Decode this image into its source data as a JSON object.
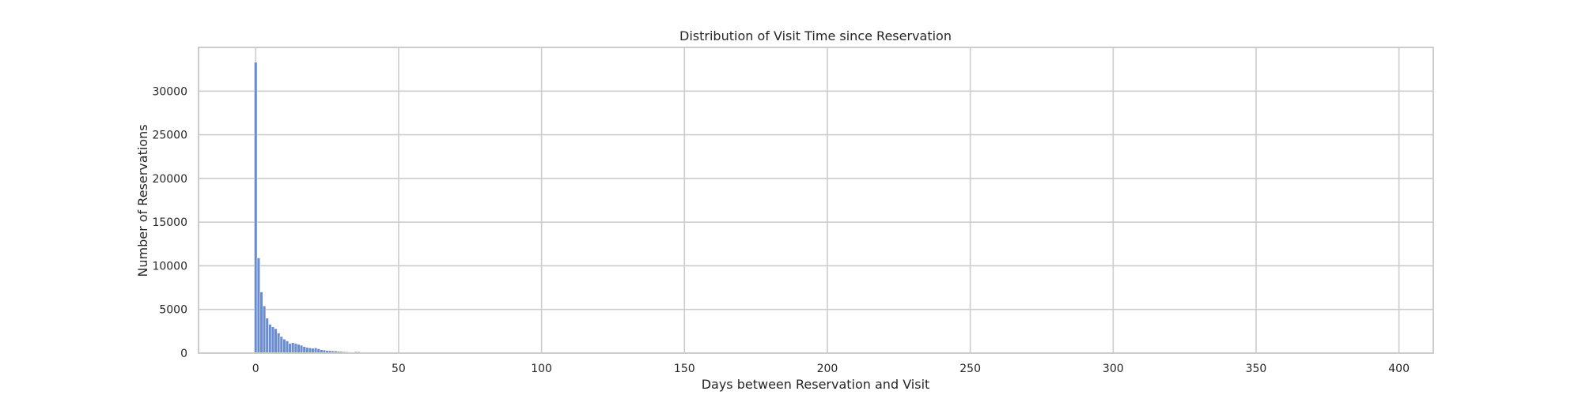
{
  "chart_data": {
    "type": "bar",
    "title": "Distribution of Visit Time since Reservation",
    "xlabel": "Days between Reservation and Visit",
    "ylabel": "Number of Reservations",
    "xlim": [
      -20,
      412
    ],
    "ylim": [
      0,
      35000
    ],
    "xticks": [
      0,
      50,
      100,
      150,
      200,
      250,
      300,
      350,
      400
    ],
    "yticks": [
      0,
      5000,
      10000,
      15000,
      20000,
      25000,
      30000
    ],
    "grid": true,
    "bar_color": "#6b8ccf",
    "bin_width": 1,
    "x": [
      0,
      1,
      2,
      3,
      4,
      5,
      6,
      7,
      8,
      9,
      10,
      11,
      12,
      13,
      14,
      15,
      16,
      17,
      18,
      19,
      20,
      21,
      22,
      23,
      24,
      25,
      26,
      27,
      28,
      29,
      30,
      31,
      32,
      33,
      34,
      35,
      36,
      37,
      38,
      39,
      40,
      41,
      42,
      43,
      44,
      45,
      46,
      47,
      48,
      49,
      50,
      51,
      52,
      53,
      54,
      55,
      56,
      57,
      58,
      59,
      60,
      61,
      62,
      63,
      64,
      65,
      66,
      67,
      68,
      69,
      70,
      71,
      72,
      73,
      74,
      75,
      76,
      77,
      78,
      79,
      80
    ],
    "values": [
      33300,
      10900,
      7000,
      5400,
      4000,
      3300,
      3000,
      2800,
      2300,
      1900,
      1600,
      1400,
      1100,
      1200,
      1100,
      1000,
      900,
      750,
      650,
      600,
      550,
      600,
      500,
      400,
      350,
      300,
      280,
      260,
      240,
      200,
      180,
      150,
      140,
      120,
      110,
      160,
      150,
      90,
      70,
      60,
      50,
      45,
      40,
      35,
      30,
      28,
      26,
      24,
      22,
      20,
      18,
      16,
      15,
      14,
      13,
      12,
      11,
      10,
      10,
      9,
      9,
      8,
      8,
      7,
      7,
      6,
      6,
      6,
      5,
      5,
      5,
      4,
      4,
      4,
      3,
      3,
      3,
      2,
      2,
      2,
      2
    ]
  }
}
